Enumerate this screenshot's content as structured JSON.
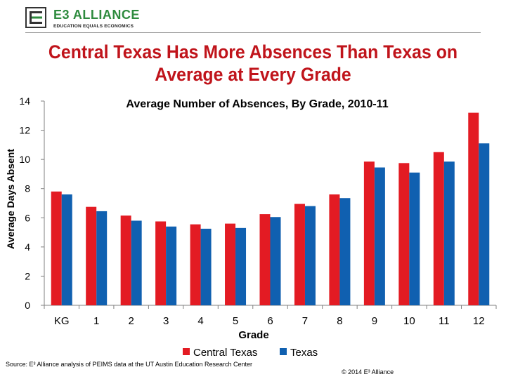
{
  "logo": {
    "name": "E3 ALLIANCE",
    "tagline": "EDUCATION EQUALS ECONOMICS"
  },
  "title_lines": [
    "Central Texas Has More Absences Than Texas on",
    "Average at Every Grade"
  ],
  "chart_data": {
    "type": "bar",
    "title": "Average Number of Absences, By Grade, 2010-11",
    "xlabel": "Grade",
    "ylabel": "Average Days Absent",
    "ylim": [
      0,
      14
    ],
    "yticks": [
      0,
      2,
      4,
      6,
      8,
      10,
      12,
      14
    ],
    "grid": false,
    "legend_position": "bottom",
    "categories": [
      "KG",
      "1",
      "2",
      "3",
      "4",
      "5",
      "6",
      "7",
      "8",
      "9",
      "10",
      "11",
      "12"
    ],
    "series": [
      {
        "name": "Central Texas",
        "color": "#e31b23",
        "values": [
          7.8,
          6.75,
          6.15,
          5.75,
          5.55,
          5.6,
          6.25,
          6.95,
          7.6,
          9.85,
          9.75,
          10.5,
          13.2
        ]
      },
      {
        "name": "Texas",
        "color": "#1060b0",
        "values": [
          7.6,
          6.45,
          5.8,
          5.4,
          5.25,
          5.3,
          6.05,
          6.8,
          7.35,
          9.45,
          9.1,
          9.85,
          11.1
        ]
      }
    ]
  },
  "source": "Source: E³ Alliance analysis of PEIMS data at the UT Austin Education Research Center",
  "copyright": "© 2014 E³ Alliance"
}
